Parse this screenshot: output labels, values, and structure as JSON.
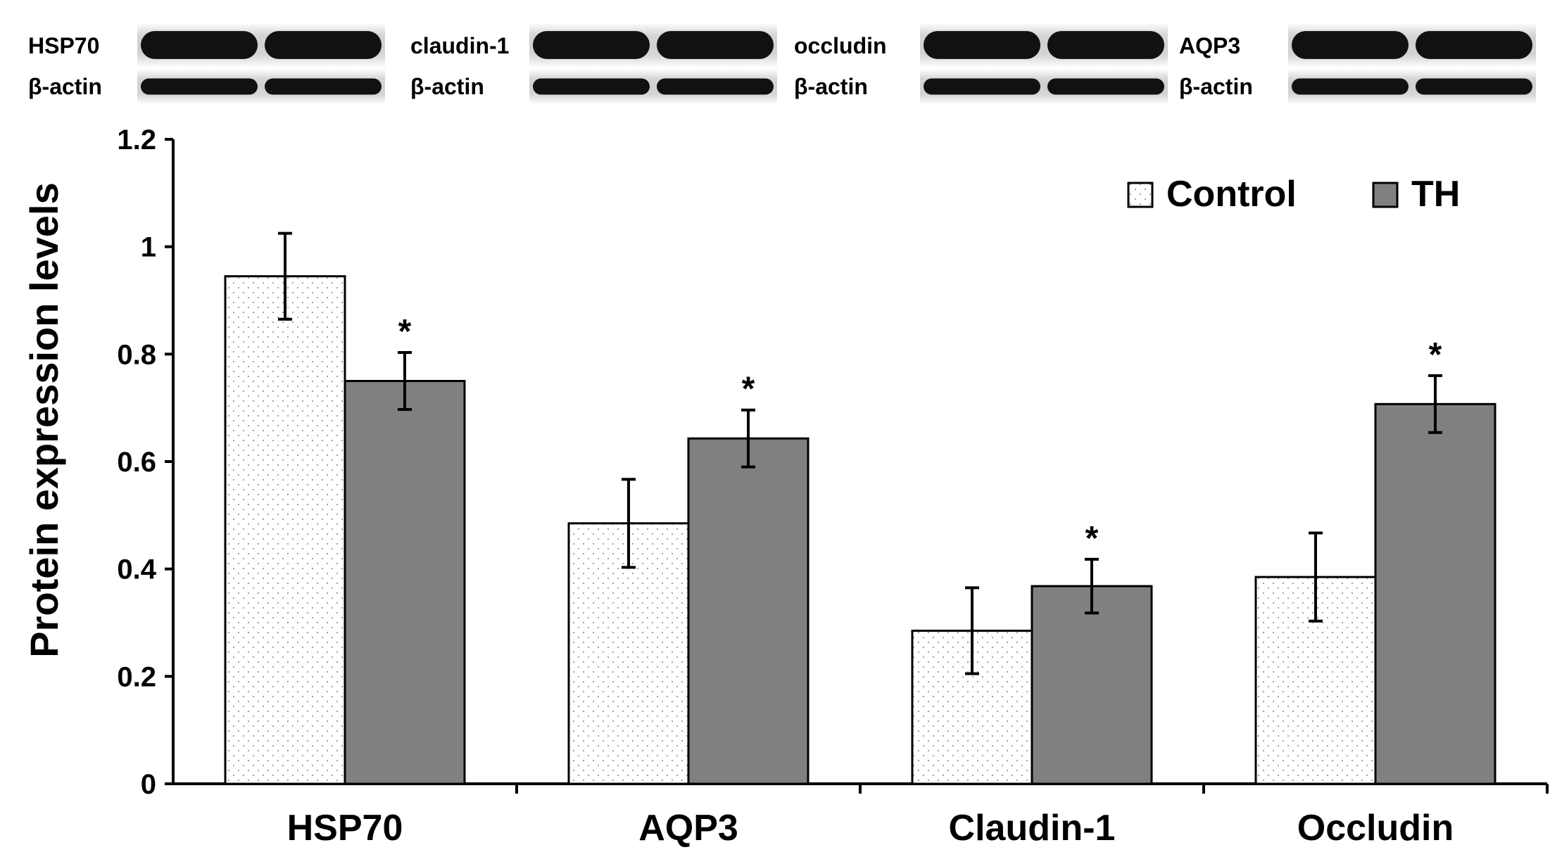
{
  "blots": [
    {
      "target": "HSP70",
      "control": "β-actin"
    },
    {
      "target": "claudin-1",
      "control": "β-actin"
    },
    {
      "target": "occludin",
      "control": "β-actin"
    },
    {
      "target": "AQP3",
      "control": "β-actin"
    }
  ],
  "chart_data": {
    "type": "bar",
    "title": "",
    "xlabel": "",
    "ylabel": "Protein expression levels",
    "ylim": [
      0,
      1.2
    ],
    "yticks": [
      0,
      0.2,
      0.4,
      0.6,
      0.8,
      1,
      1.2
    ],
    "ytick_labels": [
      "0",
      "0.2",
      "0.4",
      "0.6",
      "0.8",
      "1",
      "1.2"
    ],
    "categories": [
      "HSP70",
      "AQP3",
      "Claudin-1",
      "Occludin"
    ],
    "series": [
      {
        "name": "Control",
        "values": [
          0.945,
          0.485,
          0.285,
          0.385
        ],
        "errors": [
          0.08,
          0.082,
          0.08,
          0.082
        ],
        "significant": [
          false,
          false,
          false,
          false
        ]
      },
      {
        "name": "TH",
        "values": [
          0.75,
          0.643,
          0.368,
          0.707
        ],
        "errors": [
          0.053,
          0.053,
          0.05,
          0.053
        ],
        "significant": [
          true,
          true,
          true,
          true
        ]
      }
    ],
    "significance_marker": "*",
    "legend": {
      "position": "top-right"
    },
    "grid": false,
    "colors": {
      "control_fill": "#ffffff",
      "control_dots": "#9a9a9a",
      "th_fill": "#808080",
      "axis": "#000000"
    }
  }
}
